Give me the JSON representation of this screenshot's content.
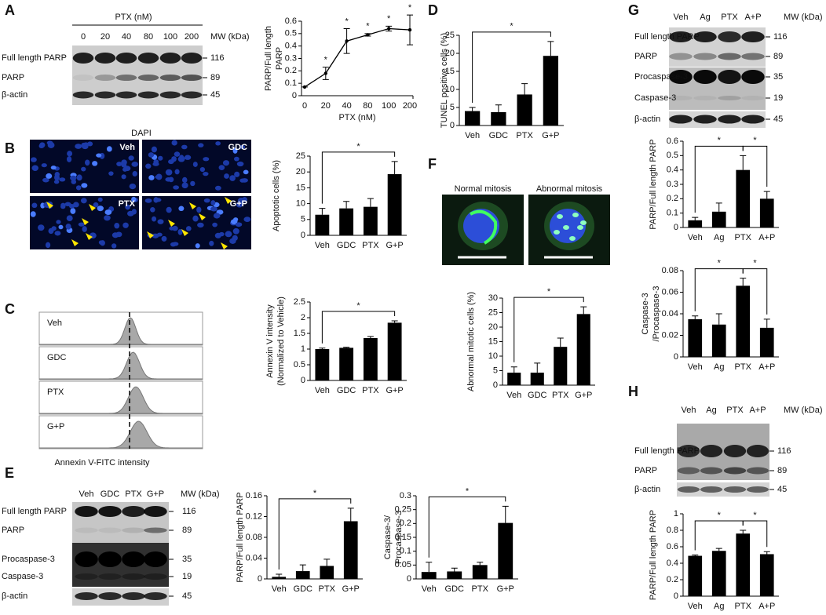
{
  "panel_labels": [
    "A",
    "B",
    "C",
    "D",
    "E",
    "F",
    "G",
    "H"
  ],
  "blots": {
    "A": {
      "title": "PTX (nM)",
      "lanes": [
        "0",
        "20",
        "40",
        "80",
        "100",
        "200"
      ],
      "mw_title": "MW (kDa)",
      "rows": [
        "Full length PARP",
        "PARP",
        "β-actin"
      ],
      "mw": [
        "116",
        "89",
        "45"
      ]
    },
    "E": {
      "lanes": [
        "Veh",
        "GDC",
        "PTX",
        "G+P"
      ],
      "mw_title": "MW (kDa)",
      "rows": [
        "Full length PARP",
        "PARP",
        "Procaspase-3",
        "Caspase-3",
        "β-actin"
      ],
      "mw": [
        "116",
        "89",
        "35",
        "19",
        "45"
      ]
    },
    "G": {
      "lanes": [
        "Veh",
        "Ag",
        "PTX",
        "A+P"
      ],
      "mw_title": "MW (kDa)",
      "rows": [
        "Full length PARP",
        "PARP",
        "Procaspase-3",
        "Caspase-3",
        "β-actin"
      ],
      "mw": [
        "116",
        "89",
        "35",
        "19",
        "45"
      ]
    },
    "H": {
      "lanes": [
        "Veh",
        "Ag",
        "PTX",
        "A+P"
      ],
      "mw_title": "MW (kDa)",
      "rows": [
        "Full length PARP",
        "PARP",
        "β-actin"
      ],
      "mw": [
        "116",
        "89",
        "45"
      ]
    }
  },
  "microscopy_B": {
    "title": "DAPI",
    "panels": [
      "Veh",
      "GDC",
      "PTX",
      "G+P"
    ]
  },
  "microscopy_F": {
    "panels": [
      "Normal mitosis",
      "Abnormal mitosis"
    ]
  },
  "flow_C": {
    "panels": [
      "Veh",
      "GDC",
      "PTX",
      "G+P"
    ],
    "xlabel": "Annexin V-FITC intensity"
  },
  "chart_data": [
    {
      "type": "line",
      "ylabel": [
        "PARP/Full length",
        "PARP"
      ],
      "xlabel": "PTX (nM)",
      "categories": [
        "0",
        "20",
        "40",
        "80",
        "100",
        "200"
      ],
      "values": [
        0.07,
        0.18,
        0.44,
        0.49,
        0.54,
        0.53
      ],
      "errors": [
        0,
        0.05,
        0.1,
        0.01,
        0.02,
        0.12
      ],
      "annotations": [
        "*",
        "*",
        "*",
        "*",
        "*"
      ],
      "color": "#000000",
      "ylim": [
        0,
        0.6
      ],
      "yticks": [
        0,
        0.1,
        0.2,
        0.3,
        0.4,
        0.5,
        0.6
      ]
    },
    {
      "type": "bar",
      "ylabel": [
        "Apoptotic cells (%)"
      ],
      "categories": [
        "Veh",
        "GDC",
        "PTX",
        "G+P"
      ],
      "values": [
        6.5,
        8.5,
        9,
        19.3
      ],
      "errors": [
        2,
        2.2,
        2.6,
        4
      ],
      "significance": [
        "*"
      ],
      "color": "#000000",
      "ylim": [
        0,
        25
      ],
      "yticks": [
        0,
        5,
        10,
        15,
        20,
        25
      ]
    },
    {
      "type": "bar",
      "ylabel": [
        "Annexin V intensity",
        "(Normalized to Vehicle)"
      ],
      "categories": [
        "Veh",
        "GDC",
        "PTX",
        "G+P"
      ],
      "values": [
        1,
        1.04,
        1.35,
        1.84
      ],
      "errors": [
        0.03,
        0.02,
        0.05,
        0.06
      ],
      "significance": [
        "*"
      ],
      "color": "#000000",
      "ylim": [
        0,
        2.5
      ],
      "yticks": [
        0,
        0.5,
        1,
        1.5,
        2,
        2.5
      ]
    },
    {
      "type": "bar",
      "ylabel": [
        "TUNEL positive cells (%)"
      ],
      "categories": [
        "Veh",
        "GDC",
        "PTX",
        "G+P"
      ],
      "values": [
        4,
        3.7,
        8.6,
        19.3
      ],
      "errors": [
        1,
        2,
        3,
        4
      ],
      "significance": [
        "*"
      ],
      "color": "#000000",
      "ylim": [
        0,
        25
      ],
      "yticks": [
        0,
        5,
        10,
        15,
        20,
        25
      ]
    },
    {
      "type": "bar",
      "ylabel": [
        "PARP/Full length PARP"
      ],
      "categories": [
        "Veh",
        "GDC",
        "PTX",
        "G+P"
      ],
      "values": [
        0.004,
        0.015,
        0.025,
        0.111
      ],
      "errors": [
        0.005,
        0.012,
        0.013,
        0.025
      ],
      "significance": [
        "*"
      ],
      "color": "#000000",
      "ylim": [
        0,
        0.16
      ],
      "yticks": [
        0,
        0.04,
        0.08,
        0.12,
        0.16
      ]
    },
    {
      "type": "bar",
      "ylabel": [
        "Caspase-3/",
        "Procaspase-3"
      ],
      "categories": [
        "Veh",
        "GDC",
        "PTX",
        "G+P"
      ],
      "values": [
        0.025,
        0.027,
        0.05,
        0.202
      ],
      "errors": [
        0.035,
        0.012,
        0.01,
        0.06
      ],
      "significance": [
        "*"
      ],
      "color": "#000000",
      "ylim": [
        0,
        0.3
      ],
      "yticks": [
        0,
        0.05,
        0.1,
        0.15,
        0.2,
        0.25,
        0.3
      ]
    },
    {
      "type": "bar",
      "ylabel": [
        "Abnormal mitotic cells (%)"
      ],
      "categories": [
        "Veh",
        "GDC",
        "PTX",
        "G+P"
      ],
      "values": [
        4.3,
        4.3,
        13.2,
        24.5
      ],
      "errors": [
        2,
        3.3,
        3,
        2.5
      ],
      "significance": [
        "*"
      ],
      "color": "#000000",
      "ylim": [
        0,
        30
      ],
      "yticks": [
        0,
        5,
        10,
        15,
        20,
        25,
        30
      ]
    },
    {
      "type": "bar",
      "ylabel": [
        "PARP/Full length PARP"
      ],
      "categories": [
        "Veh",
        "Ag",
        "PTX",
        "A+P"
      ],
      "values": [
        0.05,
        0.11,
        0.4,
        0.2
      ],
      "errors": [
        0.02,
        0.06,
        0.1,
        0.05
      ],
      "significance": [
        "*",
        "*"
      ],
      "color": "#000000",
      "ylim": [
        0,
        0.6
      ],
      "yticks": [
        0,
        0.1,
        0.2,
        0.3,
        0.4,
        0.5,
        0.6
      ]
    },
    {
      "type": "bar",
      "ylabel": [
        "Caspase-3",
        "/Procaspase-3"
      ],
      "categories": [
        "Veh",
        "Ag",
        "PTX",
        "A+P"
      ],
      "values": [
        0.035,
        0.03,
        0.066,
        0.027
      ],
      "errors": [
        0.003,
        0.01,
        0.007,
        0.008
      ],
      "significance": [
        "*",
        "*"
      ],
      "color": "#000000",
      "ylim": [
        0,
        0.08
      ],
      "yticks": [
        0,
        0.02,
        0.04,
        0.06,
        0.08
      ]
    },
    {
      "type": "bar",
      "ylabel": [
        "PARP/Full length PARP"
      ],
      "categories": [
        "Veh",
        "Ag",
        "PTX",
        "A+P"
      ],
      "values": [
        0.49,
        0.55,
        0.76,
        0.51
      ],
      "errors": [
        0.01,
        0.03,
        0.04,
        0.03
      ],
      "significance": [
        "*",
        "*"
      ],
      "color": "#000000",
      "ylim": [
        0,
        1
      ],
      "yticks": [
        0,
        0.2,
        0.4,
        0.6,
        0.8,
        1
      ]
    }
  ]
}
